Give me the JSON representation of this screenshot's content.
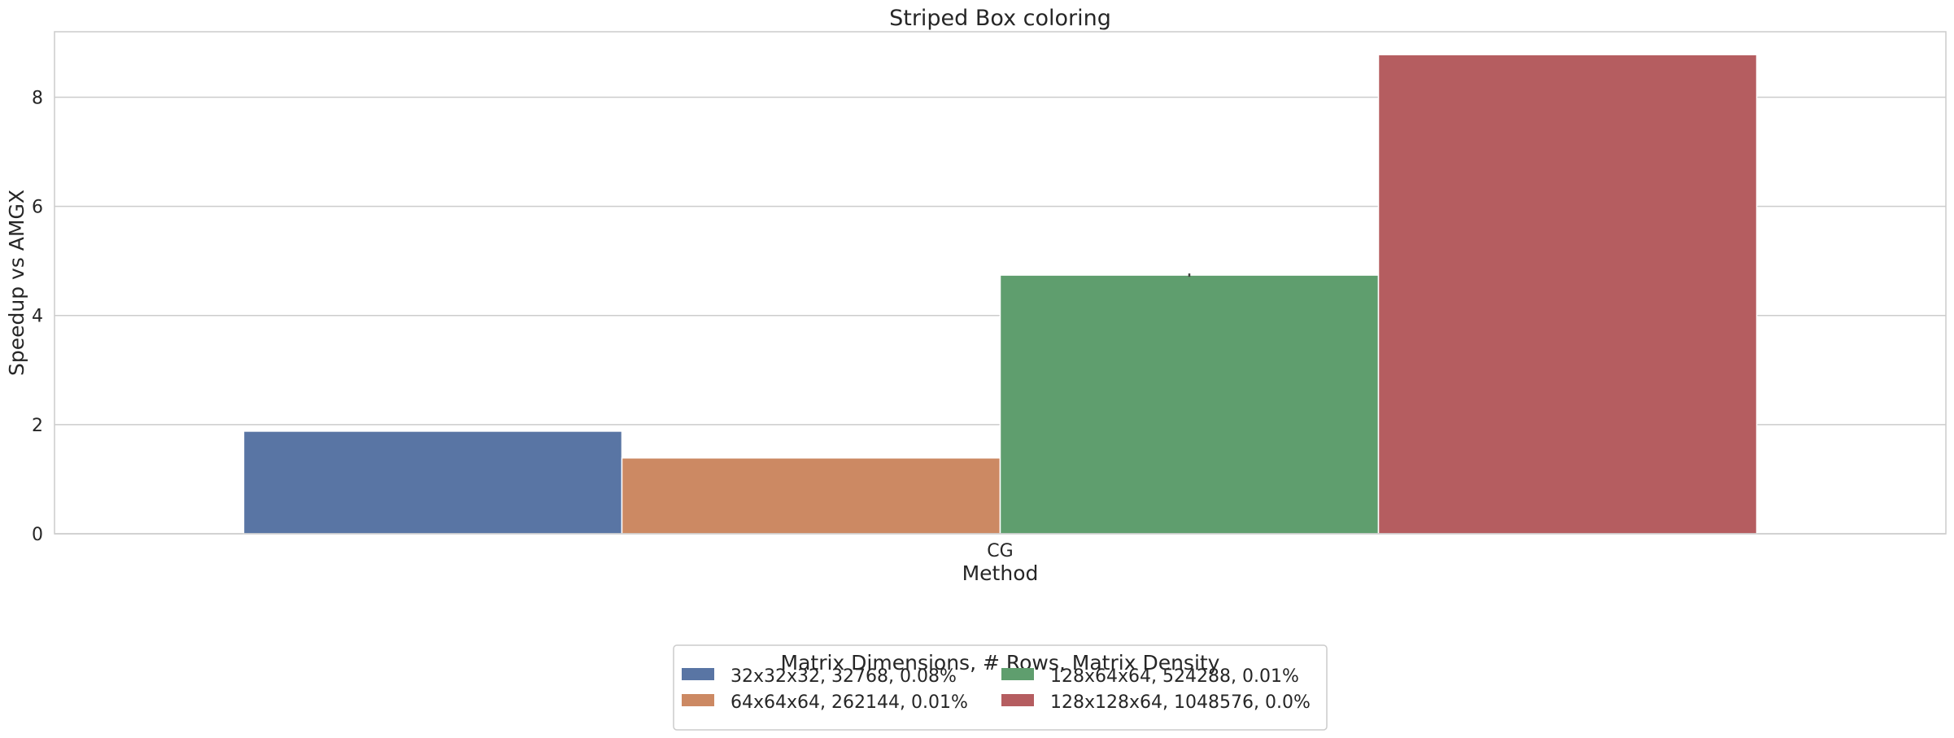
{
  "chart_data": {
    "type": "bar",
    "title": "Striped Box coloring",
    "xlabel": "Method",
    "ylabel": "Speedup vs AMGX",
    "categories": [
      "CG"
    ],
    "ylim": [
      0,
      9.2
    ],
    "yticks": [
      0,
      2,
      4,
      6,
      8
    ],
    "grid": true,
    "legend": {
      "title": "Matrix Dimensions, # Rows, Matrix Density",
      "placement": "bottom-center",
      "columns": 2
    },
    "series": [
      {
        "name": "32x32x32, 32768, 0.08%",
        "values": [
          1.88
        ],
        "color": "#5975a4"
      },
      {
        "name": "64x64x64, 262144, 0.01%",
        "values": [
          1.39
        ],
        "color": "#cc8963"
      },
      {
        "name": "128x64x64, 524288, 0.01%",
        "values": [
          4.74
        ],
        "color": "#5f9e6e",
        "error": [
          0.03
        ]
      },
      {
        "name": "128x128x64, 1048576, 0.0%",
        "values": [
          8.78
        ],
        "color": "#b55d60"
      }
    ]
  }
}
